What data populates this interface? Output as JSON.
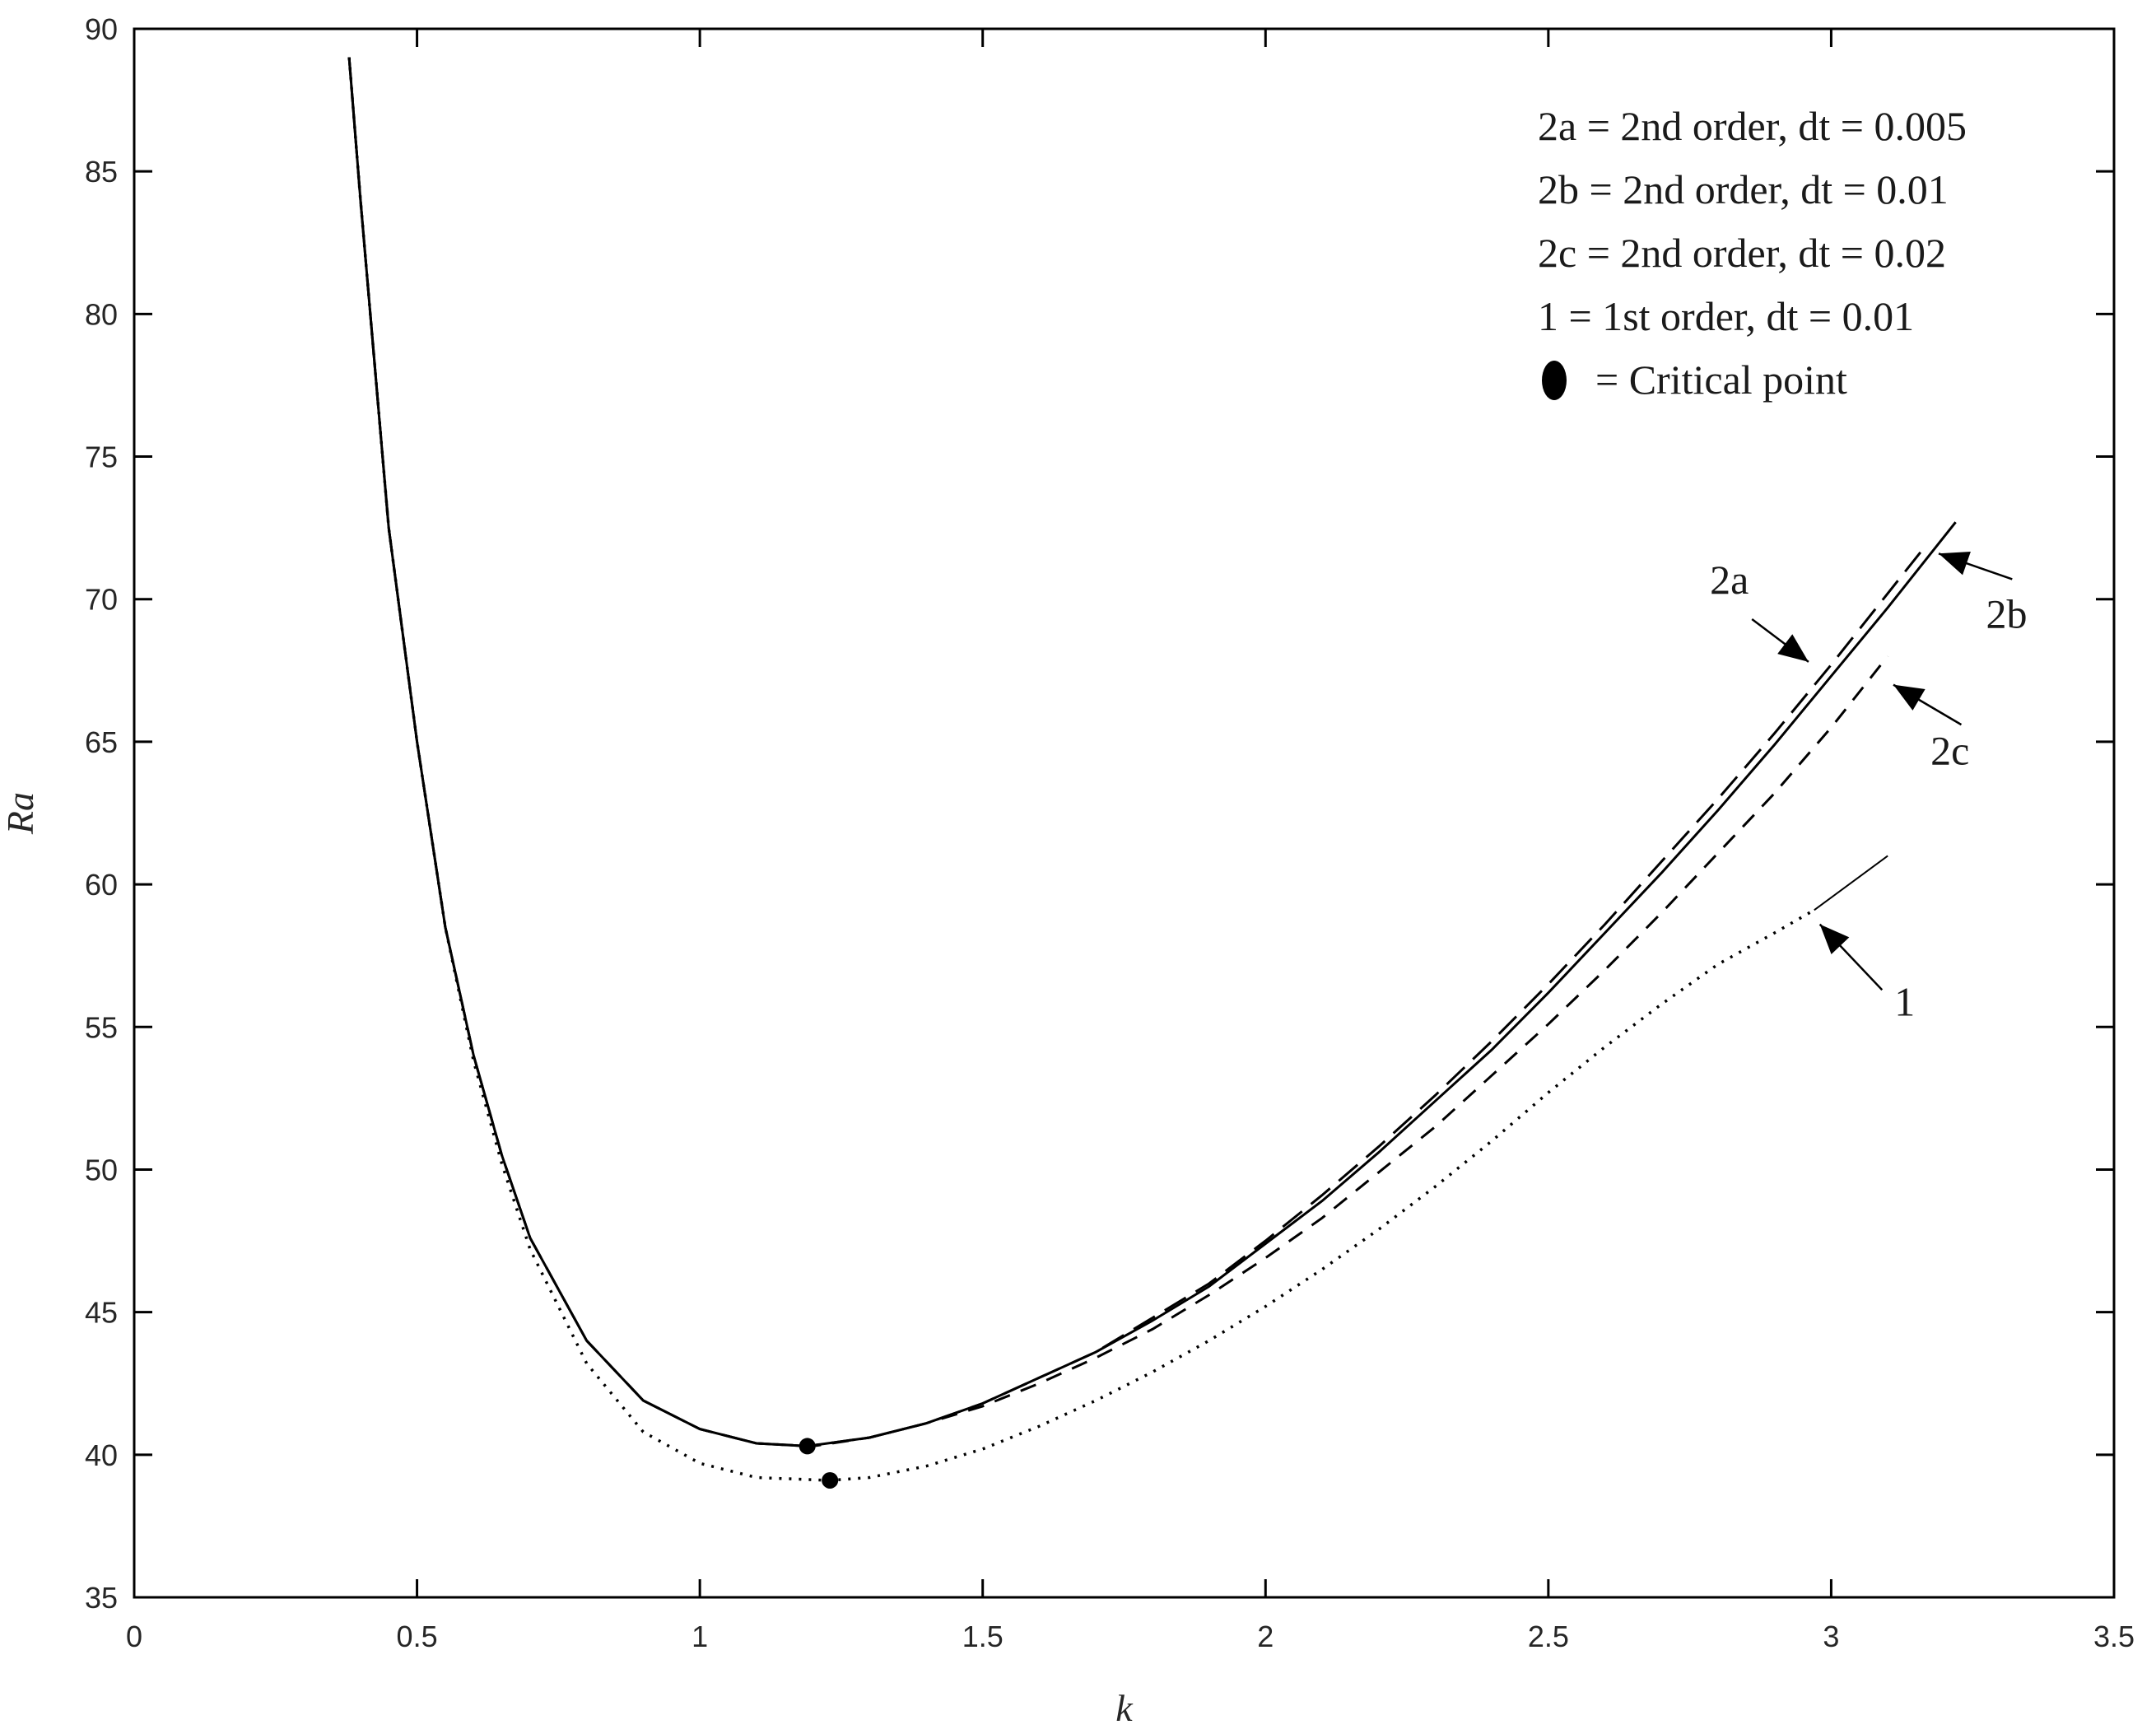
{
  "chart_data": {
    "type": "line",
    "title": "",
    "xlabel": "k",
    "ylabel": "Ra",
    "xlim": [
      0,
      3.5
    ],
    "ylim": [
      35,
      90
    ],
    "xticks": [
      0,
      0.5,
      1,
      1.5,
      2,
      2.5,
      3,
      3.5
    ],
    "xtick_labels": [
      "0",
      "0.5",
      "1",
      "1.5",
      "2",
      "2.5",
      "3",
      "3.5"
    ],
    "yticks": [
      35,
      40,
      45,
      50,
      55,
      60,
      65,
      70,
      75,
      80,
      85,
      90
    ],
    "ytick_labels": [
      "35",
      "40",
      "45",
      "50",
      "55",
      "60",
      "65",
      "70",
      "75",
      "80",
      "85",
      "90"
    ],
    "grid": false,
    "legend_position": "top-right",
    "legend": [
      {
        "text": "2a = 2nd order, dt = 0.005",
        "marker": false
      },
      {
        "text": "2b = 2nd order, dt = 0.01",
        "marker": false
      },
      {
        "text": "2c = 2nd order, dt = 0.02",
        "marker": false
      },
      {
        "text": "1   = 1st order, dt = 0.01",
        "marker": false
      },
      {
        "text": "= Critical point",
        "marker": true
      }
    ],
    "series": [
      {
        "name": "2a",
        "style": "solid",
        "color": "#000000",
        "x": [
          0.38,
          0.4,
          0.45,
          0.5,
          0.55,
          0.6,
          0.65,
          0.7,
          0.8,
          0.9,
          1.0,
          1.1,
          1.19,
          1.3,
          1.4,
          1.5,
          1.6,
          1.7,
          1.8,
          1.9,
          2.0,
          2.1,
          2.2,
          2.3,
          2.4,
          2.5,
          2.6,
          2.7,
          2.8,
          2.9,
          3.0,
          3.1,
          3.22
        ],
        "y": [
          89.0,
          84.0,
          72.5,
          65.0,
          58.5,
          54.0,
          50.5,
          47.6,
          44.0,
          41.9,
          40.9,
          40.4,
          40.3,
          40.6,
          41.1,
          41.8,
          42.7,
          43.6,
          44.7,
          45.9,
          47.4,
          48.9,
          50.6,
          52.4,
          54.2,
          56.2,
          58.3,
          60.4,
          62.6,
          64.9,
          67.3,
          69.7,
          72.7
        ]
      },
      {
        "name": "2b",
        "style": "longdash",
        "color": "#000000",
        "x": [
          0.38,
          0.4,
          0.45,
          0.5,
          0.55,
          0.6,
          0.65,
          0.7,
          0.8,
          0.9,
          1.0,
          1.1,
          1.19,
          1.3,
          1.4,
          1.5,
          1.6,
          1.7,
          1.8,
          1.9,
          2.0,
          2.1,
          2.2,
          2.3,
          2.4,
          2.5,
          2.6,
          2.7,
          2.8,
          2.9,
          3.0,
          3.1,
          3.16
        ],
        "y": [
          89.0,
          84.0,
          72.5,
          65.0,
          58.5,
          54.0,
          50.5,
          47.6,
          44.0,
          41.9,
          40.9,
          40.4,
          40.3,
          40.6,
          41.1,
          41.8,
          42.7,
          43.6,
          44.8,
          46.0,
          47.5,
          49.1,
          50.8,
          52.6,
          54.5,
          56.5,
          58.6,
          60.8,
          63.0,
          65.3,
          67.7,
          70.2,
          71.7
        ]
      },
      {
        "name": "2c",
        "style": "dash",
        "color": "#000000",
        "x": [
          0.38,
          0.4,
          0.45,
          0.5,
          0.55,
          0.6,
          0.65,
          0.7,
          0.8,
          0.9,
          1.0,
          1.1,
          1.2,
          1.3,
          1.4,
          1.5,
          1.6,
          1.7,
          1.8,
          1.9,
          2.0,
          2.1,
          2.2,
          2.3,
          2.4,
          2.5,
          2.6,
          2.7,
          2.8,
          2.9,
          3.0,
          3.1
        ],
        "y": [
          89.0,
          84.0,
          72.5,
          65.0,
          58.5,
          54.0,
          50.5,
          47.6,
          44.0,
          41.9,
          40.9,
          40.4,
          40.3,
          40.6,
          41.1,
          41.7,
          42.5,
          43.4,
          44.4,
          45.6,
          46.9,
          48.3,
          49.9,
          51.5,
          53.3,
          55.1,
          57.0,
          59.0,
          61.1,
          63.2,
          65.5,
          68.0
        ]
      },
      {
        "name": "1",
        "style": "dotted",
        "color": "#000000",
        "x": [
          0.38,
          0.4,
          0.45,
          0.5,
          0.55,
          0.6,
          0.65,
          0.7,
          0.8,
          0.9,
          1.0,
          1.1,
          1.23,
          1.3,
          1.4,
          1.5,
          1.6,
          1.7,
          1.8,
          1.9,
          2.0,
          2.1,
          2.2,
          2.3,
          2.4,
          2.5,
          2.6,
          2.7,
          2.8,
          2.9,
          2.97
        ],
        "y": [
          89.0,
          84.0,
          72.5,
          65.0,
          58.5,
          53.8,
          50.2,
          47.2,
          43.2,
          40.8,
          39.7,
          39.2,
          39.1,
          39.2,
          39.6,
          40.2,
          41.0,
          41.9,
          42.9,
          44.0,
          45.2,
          46.5,
          47.9,
          49.4,
          51.0,
          52.7,
          54.3,
          55.8,
          57.2,
          58.3,
          59.1
        ]
      }
    ],
    "critical_points": [
      {
        "x": 1.19,
        "y": 40.3
      },
      {
        "x": 1.23,
        "y": 39.1
      }
    ],
    "annotations": [
      {
        "label": "2a",
        "text_x": 2.82,
        "text_y": 70.2,
        "arrow_from": [
          2.86,
          69.3
        ],
        "arrow_to": [
          2.96,
          67.8
        ]
      },
      {
        "label": "2b",
        "text_x": 3.31,
        "text_y": 69.0,
        "arrow_from": [
          3.32,
          70.7
        ],
        "arrow_to": [
          3.19,
          71.6
        ]
      },
      {
        "label": "2c",
        "text_x": 3.21,
        "text_y": 64.2,
        "arrow_from": [
          3.23,
          65.6
        ],
        "arrow_to": [
          3.11,
          67.0
        ]
      },
      {
        "label": "1",
        "text_x": 3.13,
        "text_y": 55.4,
        "arrow_from": [
          3.09,
          56.3
        ],
        "arrow_to": [
          2.98,
          58.6
        ]
      }
    ],
    "extra_segment": {
      "from": [
        2.97,
        59.1
      ],
      "to": [
        3.1,
        61.0
      ]
    }
  }
}
